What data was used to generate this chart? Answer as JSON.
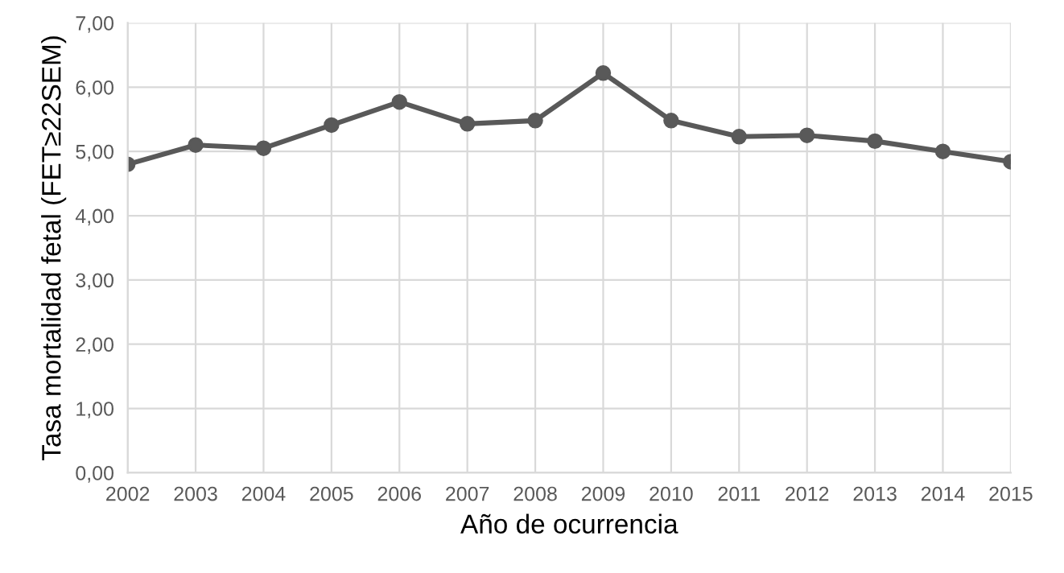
{
  "chart_data": {
    "type": "line",
    "xlabel": "Año de ocurrencia",
    "ylabel": "Tasa mortalidad fetal (FET≥22SEM)",
    "categories": [
      "2002",
      "2003",
      "2004",
      "2005",
      "2006",
      "2007",
      "2008",
      "2009",
      "2010",
      "2011",
      "2012",
      "2013",
      "2014",
      "2015"
    ],
    "series": [
      {
        "color": "#595959",
        "values": [
          4.8,
          5.1,
          5.05,
          5.41,
          5.77,
          5.43,
          5.48,
          6.22,
          5.48,
          5.23,
          5.25,
          5.16,
          5.0,
          4.84
        ]
      }
    ],
    "ylim": [
      0,
      7
    ],
    "yticks": [
      {
        "value": 0,
        "label": "0,00"
      },
      {
        "value": 1,
        "label": "1,00"
      },
      {
        "value": 2,
        "label": "2,00"
      },
      {
        "value": 3,
        "label": "3,00"
      },
      {
        "value": 4,
        "label": "4,00"
      },
      {
        "value": 5,
        "label": "5,00"
      },
      {
        "value": 6,
        "label": "6,00"
      },
      {
        "value": 7,
        "label": "7,00"
      }
    ],
    "grid": true,
    "marker": "circle",
    "line_style": "solid"
  }
}
